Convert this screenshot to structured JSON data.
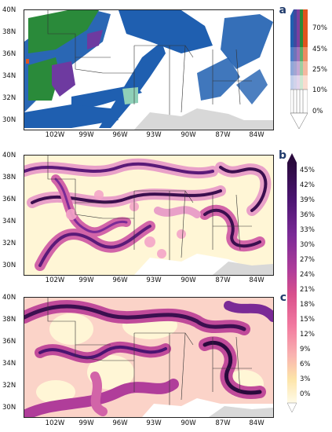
{
  "panels": [
    {
      "label": "a",
      "lat_labels": [
        "40N",
        "38N",
        "36N",
        "34N",
        "32N",
        "30N"
      ],
      "lon_labels": [
        "102W",
        "99W",
        "96W",
        "93W",
        "90W",
        "87W",
        "84W"
      ],
      "colorbar": {
        "ticks": [
          "70%",
          "45%",
          "25%",
          "10%",
          "0%"
        ],
        "colors": [
          "#1f5fb0",
          "#3f4a9e",
          "#7a3fa0",
          "#2a8a3a",
          "#e0531f"
        ]
      }
    },
    {
      "label": "b",
      "lat_labels": [
        "40N",
        "38N",
        "36N",
        "34N",
        "32N",
        "30N"
      ],
      "lon_labels": [
        "102W",
        "99W",
        "96W",
        "93W",
        "90W",
        "87W",
        "84W"
      ],
      "colorbar_ticks": [
        "45%",
        "42%",
        "39%",
        "36%",
        "33%",
        "30%",
        "27%",
        "24%",
        "21%",
        "18%",
        "15%",
        "12%",
        "9%",
        "6%",
        "3%",
        "0%"
      ]
    },
    {
      "label": "c",
      "lat_labels": [
        "40N",
        "38N",
        "36N",
        "34N",
        "32N",
        "30N"
      ],
      "lon_labels": [
        "102W",
        "99W",
        "96W",
        "93W",
        "90W",
        "87W",
        "84W"
      ]
    }
  ],
  "colors": {
    "blue": "#1f5fb0",
    "green": "#2a8a3a",
    "purple": "#6e3aa0",
    "teal": "#8fd0b8",
    "dark_purple": "#3b0f4f",
    "magenta": "#c0307a",
    "pale": "#fff4c8"
  }
}
